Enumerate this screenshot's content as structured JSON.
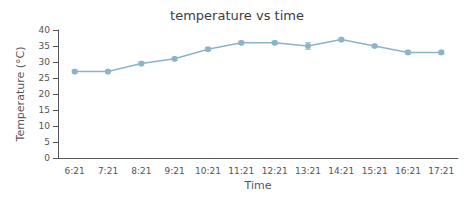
{
  "chart_data": {
    "type": "line",
    "title": "temperature vs time",
    "xlabel": "Time",
    "ylabel": "Temperature (°C)",
    "categories": [
      "6:21",
      "7:21",
      "8:21",
      "9:21",
      "10:21",
      "11:21",
      "12:21",
      "13:21",
      "14:21",
      "15:21",
      "16:21",
      "17:21"
    ],
    "values": [
      27.0,
      27.0,
      29.5,
      31.0,
      34.0,
      36.0,
      36.0,
      35.0,
      37.0,
      35.0,
      33.0,
      33.0
    ],
    "errors": [
      0.5,
      0.5,
      0.5,
      0.5,
      0.5,
      0.5,
      0.5,
      1.0,
      0.5,
      0.5,
      0.5,
      0.5
    ],
    "color": "#8ab4c8",
    "marker": "circle",
    "ylim": [
      0,
      40
    ],
    "yticks": [
      0,
      5,
      10,
      15,
      20,
      25,
      30,
      35,
      40
    ],
    "grid": false
  }
}
